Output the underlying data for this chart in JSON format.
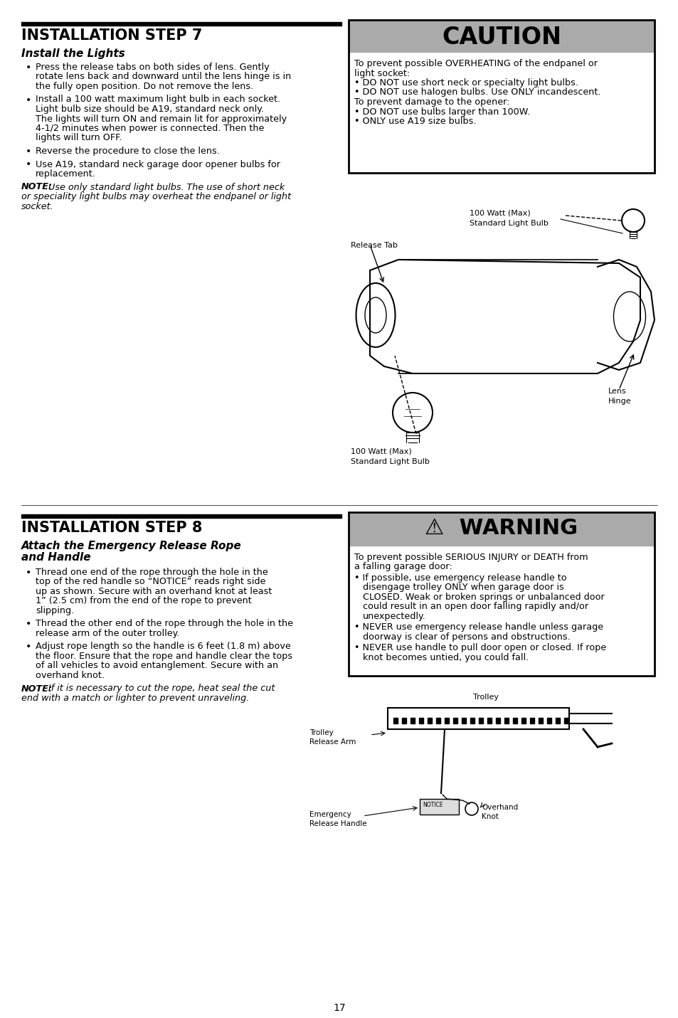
{
  "page_number": "17",
  "bg": "#ffffff",
  "gray": "#aaaaaa",
  "black": "#000000",
  "step7_title": "INSTALLATION STEP 7",
  "step7_sub": "Install the Lights",
  "step7_b1": "Press the release tabs on both sides of lens. Gently\nrotate lens back and downward until the lens hinge is in\nthe fully open position. Do not remove the lens.",
  "step7_b2": "Install a 100 watt maximum light bulb in each socket.\nLight bulb size should be A19, standard neck only.\nThe lights will turn ON and remain lit for approximately\n4-1/2 minutes when power is connected. Then the\nlights will turn OFF.",
  "step7_b3": "Reverse the procedure to close the lens.",
  "step7_b4": "Use A19, standard neck garage door opener bulbs for\nreplacement.",
  "step7_note": "NOTE: Use only standard light bulbs. The use of short neck\nor speciality light bulbs may overheat the endpanel or light\nsocket.",
  "caution_title": "CAUTION",
  "caution_body": "To prevent possible OVERHEATING of the endpanel or\nlight socket:\n• DO NOT use short neck or specialty light bulbs.\n• DO NOT use halogen bulbs. Use ONLY incandescent.\nTo prevent damage to the opener:\n• DO NOT use bulbs larger than 100W.\n• ONLY use A19 size bulbs.",
  "step8_title": "INSTALLATION STEP 8",
  "step8_sub1": "Attach the Emergency Release Rope",
  "step8_sub2": "and Handle",
  "step8_b1": "Thread one end of the rope through the hole in the\ntop of the red handle so “NOTICE” reads right side\nup as shown. Secure with an overhand knot at least\n1” (2.5 cm) from the end of the rope to prevent\nslipping.",
  "step8_b2": "Thread the other end of the rope through the hole in the\nrelease arm of the outer trolley.",
  "step8_b3": "Adjust rope length so the handle is 6 feet (1.8 m) above\nthe floor. Ensure that the rope and handle clear the tops\nof all vehicles to avoid entanglement. Secure with an\noverhand knot.",
  "step8_note": "NOTE: If it is necessary to cut the rope, heat seal the cut\nend with a match or lighter to prevent unraveling.",
  "warning_title": "⚠  WARNING",
  "warning_body1": "To prevent possible SERIOUS INJURY or DEATH from\na falling garage door:",
  "warning_b1": "If possible, use emergency release handle to\ndisengage trolley ONLY when garage door is\nCLOSED. Weak or broken springs or unbalanced door\ncould result in an open door falling rapidly and/or\nunexpectedly.",
  "warning_b2": "NEVER use emergency release handle unless garage\ndoorway is clear of persons and obstructions.",
  "warning_b3": "NEVER use handle to pull door open or closed. If rope\nknot becomes untied, you could fall."
}
